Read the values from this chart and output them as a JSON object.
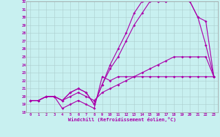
{
  "xlabel": "Windchill (Refroidissement éolien,°C)",
  "bg_color": "#c8f0f0",
  "line_color": "#aa00aa",
  "grid_color": "#aacccc",
  "xlim_min": 0,
  "xlim_max": 23,
  "ylim_min": 18,
  "ylim_max": 32,
  "series_a": [
    19.5,
    19.5,
    20.0,
    20.0,
    18.5,
    19.0,
    19.5,
    19.0,
    18.5,
    22.5,
    22.0,
    22.5,
    22.5,
    22.5,
    22.5,
    22.5,
    22.5,
    22.5,
    22.5,
    22.5,
    22.5,
    22.5,
    22.5,
    22.5
  ],
  "series_b": [
    19.5,
    19.5,
    20.0,
    20.0,
    19.5,
    20.0,
    20.5,
    20.0,
    19.5,
    20.5,
    21.0,
    21.5,
    22.0,
    22.5,
    23.0,
    23.5,
    24.0,
    24.5,
    25.0,
    25.0,
    25.0,
    25.0,
    25.0,
    22.5
  ],
  "series_c": [
    19.5,
    19.5,
    20.0,
    20.0,
    19.5,
    20.5,
    21.0,
    20.5,
    19.0,
    21.5,
    23.5,
    25.0,
    27.0,
    29.0,
    30.5,
    32.0,
    32.0,
    32.0,
    32.5,
    32.5,
    32.0,
    30.0,
    29.5,
    22.5
  ],
  "series_d": [
    19.5,
    19.5,
    20.0,
    20.0,
    19.5,
    20.5,
    21.0,
    20.5,
    19.0,
    21.5,
    24.0,
    26.0,
    28.0,
    30.5,
    32.0,
    32.5,
    32.0,
    32.0,
    32.5,
    32.5,
    32.0,
    30.0,
    26.5,
    22.5
  ]
}
